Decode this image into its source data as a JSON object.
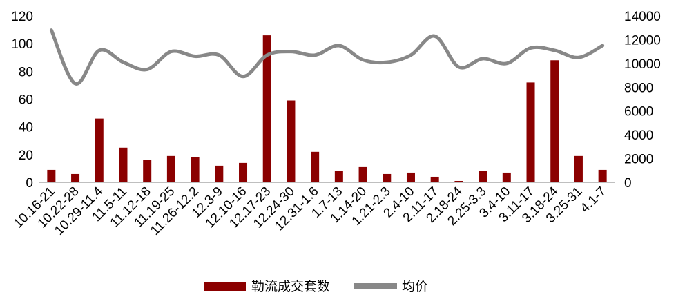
{
  "chart_data": {
    "type": "bar+line",
    "categories": [
      "10.16-21",
      "10.22-28",
      "10.29-11.4",
      "11.5-11",
      "11.12-18",
      "11.19-25",
      "11.26-12.2",
      "12.3-9",
      "12.10-16",
      "12.17-23",
      "12.24-30",
      "12.31-1.6",
      "1.7-13",
      "1.14-20",
      "1.21-2.3",
      "2.4-10",
      "2.11-17",
      "2.18-24",
      "2.25-3.3",
      "3.4-10",
      "3.11-17",
      "3.18-24",
      "3.25-31",
      "4.1-7"
    ],
    "series": [
      {
        "name": "勒流成交套数",
        "type": "bar",
        "axis": "left",
        "color": "#8B0000",
        "values": [
          9,
          6,
          46,
          25,
          16,
          19,
          18,
          12,
          14,
          106,
          59,
          22,
          8,
          11,
          6,
          7,
          4,
          1,
          8,
          7,
          72,
          88,
          19,
          9
        ]
      },
      {
        "name": "均价",
        "type": "line",
        "axis": "right",
        "color": "#888888",
        "values": [
          12800,
          8300,
          11100,
          10100,
          9500,
          11000,
          10600,
          10700,
          8900,
          10700,
          11000,
          10700,
          11500,
          10300,
          10100,
          10700,
          12300,
          9700,
          10400,
          10000,
          11300,
          11100,
          10500,
          11500
        ]
      }
    ],
    "y_left": {
      "min": 0,
      "max": 120,
      "ticks": [
        "0",
        "20",
        "40",
        "60",
        "80",
        "100",
        "120"
      ]
    },
    "y_right": {
      "min": 0,
      "max": 14000,
      "ticks": [
        "0",
        "2000",
        "4000",
        "6000",
        "8000",
        "10000",
        "12000",
        "14000"
      ]
    },
    "grid": false,
    "legend_position": "bottom-center"
  }
}
